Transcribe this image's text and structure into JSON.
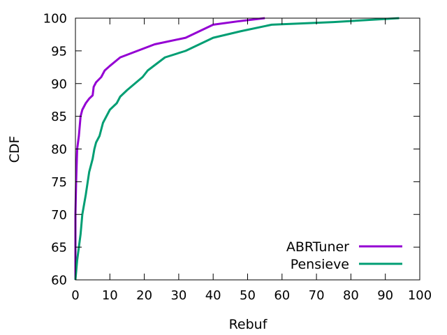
{
  "chart_data": {
    "type": "line",
    "xlabel": "Rebuf",
    "ylabel": "CDF",
    "xlim": [
      0,
      100
    ],
    "ylim": [
      60,
      100
    ],
    "xticks": [
      0,
      10,
      20,
      30,
      40,
      50,
      60,
      70,
      80,
      90,
      100
    ],
    "yticks": [
      60,
      65,
      70,
      75,
      80,
      85,
      90,
      95,
      100
    ],
    "grid": false,
    "legend_position": "bottom-right",
    "series": [
      {
        "name": "ABRTuner",
        "color": "#9400d3",
        "points": [
          [
            0,
            60
          ],
          [
            0,
            70
          ],
          [
            0.2,
            75
          ],
          [
            0.5,
            80
          ],
          [
            1,
            82
          ],
          [
            1.5,
            85
          ],
          [
            2,
            86
          ],
          [
            3,
            87
          ],
          [
            4,
            87.7
          ],
          [
            5,
            88.2
          ],
          [
            5.3,
            89.5
          ],
          [
            6,
            90.2
          ],
          [
            7.5,
            91
          ],
          [
            8.5,
            92
          ],
          [
            10,
            92.7
          ],
          [
            13,
            94
          ],
          [
            18,
            95
          ],
          [
            23,
            96
          ],
          [
            32,
            97
          ],
          [
            36,
            98
          ],
          [
            40,
            99
          ],
          [
            47,
            99.5
          ],
          [
            55,
            100
          ]
        ]
      },
      {
        "name": "Pensieve",
        "color": "#009e73",
        "points": [
          [
            0,
            60
          ],
          [
            0.5,
            63
          ],
          [
            1,
            65
          ],
          [
            1.5,
            67
          ],
          [
            2,
            70
          ],
          [
            3,
            73
          ],
          [
            4,
            76.5
          ],
          [
            5,
            78.5
          ],
          [
            5.5,
            80
          ],
          [
            6,
            81
          ],
          [
            7,
            82
          ],
          [
            8,
            84
          ],
          [
            10,
            86
          ],
          [
            12,
            87
          ],
          [
            13,
            88
          ],
          [
            15,
            89
          ],
          [
            19.5,
            91
          ],
          [
            21,
            92
          ],
          [
            26,
            94
          ],
          [
            32,
            95
          ],
          [
            36,
            96
          ],
          [
            40,
            97
          ],
          [
            48,
            98
          ],
          [
            57,
            99
          ],
          [
            75,
            99.4
          ],
          [
            94,
            100
          ]
        ]
      }
    ]
  }
}
